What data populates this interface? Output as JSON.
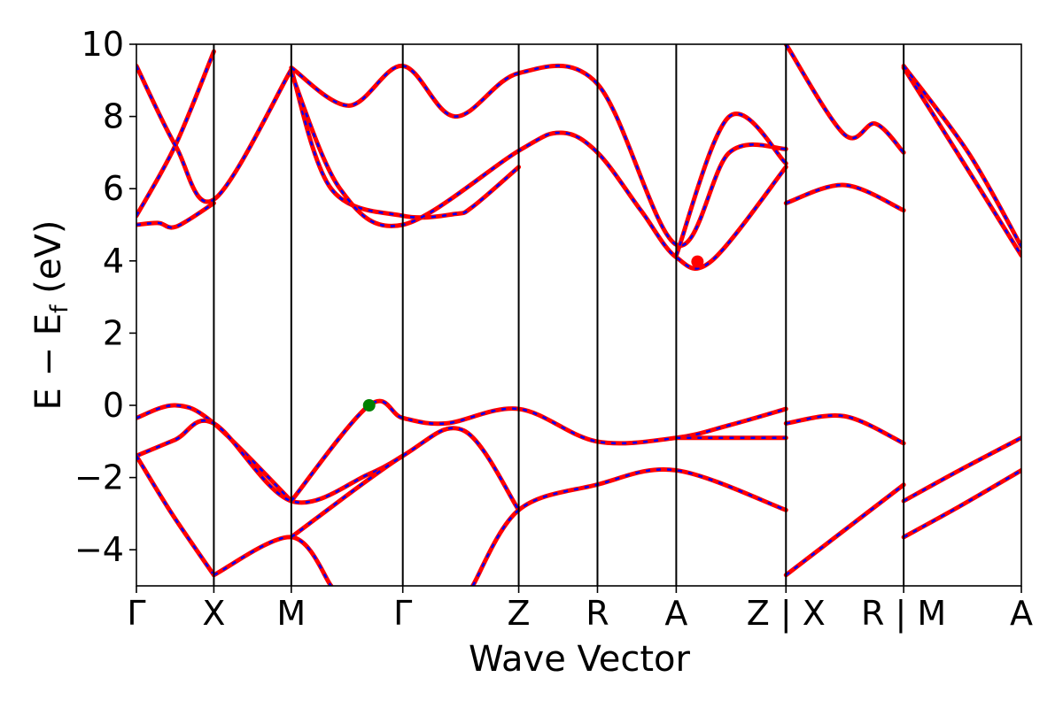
{
  "chart_data": {
    "type": "line",
    "title": "",
    "xlabel": "Wave Vector",
    "ylabel": "E − E",
    "ylabel_sub": "f",
    "ylabel_unit": " (eV)",
    "ylim": [
      -5,
      10
    ],
    "yticks": [
      -4,
      -2,
      0,
      2,
      4,
      6,
      8,
      10
    ],
    "ytick_labels": [
      "−4",
      "−2",
      "0",
      "2",
      "4",
      "6",
      "8",
      "10"
    ],
    "xlim": [
      0,
      1
    ],
    "k_ticks": [
      {
        "label": "Γ",
        "x": 0.0
      },
      {
        "label": "X",
        "x": 0.0875
      },
      {
        "label": "M",
        "x": 0.175
      },
      {
        "label": "Γ",
        "x": 0.301
      },
      {
        "label": "Z",
        "x": 0.432
      },
      {
        "label": "R",
        "x": 0.521
      },
      {
        "label": "A",
        "x": 0.61
      },
      {
        "label": "Z | X",
        "x": 0.734
      },
      {
        "label": "R | M",
        "x": 0.867
      },
      {
        "label": "A",
        "x": 1.0
      }
    ],
    "colors": {
      "band_solid": "#ff0000",
      "band_dashed": "#0000ff",
      "vbm": "#008000",
      "cbm": "#ff0000"
    },
    "markers": [
      {
        "name": "vbm",
        "x": 0.263,
        "y": 0.0
      },
      {
        "name": "cbm",
        "x": 0.634,
        "y": 3.98
      }
    ],
    "series": [
      {
        "x": [
          0.0,
          0.044,
          0.0875,
          0.175
        ],
        "y": [
          -0.35,
          0.0,
          -0.5,
          -2.65
        ]
      },
      {
        "x": [
          0.0,
          0.044,
          0.0875,
          0.175,
          0.263,
          0.301
        ],
        "y": [
          -1.4,
          -0.95,
          -0.5,
          -2.65,
          -1.9,
          -1.4
        ]
      },
      {
        "x": [
          0.0,
          0.04,
          0.0875
        ],
        "y": [
          -1.4,
          -3.0,
          -4.7
        ]
      },
      {
        "x": [
          0.0875,
          0.175,
          0.22
        ],
        "y": [
          -4.7,
          -3.65,
          -5.0
        ]
      },
      {
        "x": [
          0.175,
          0.263,
          0.301,
          0.35,
          0.432,
          0.52,
          0.61,
          0.67,
          0.734
        ],
        "y": [
          -2.65,
          0.0,
          -0.35,
          -0.5,
          -0.1,
          -1.0,
          -0.9,
          -0.55,
          -0.1
        ]
      },
      {
        "x": [
          0.175,
          0.301,
          0.37,
          0.432
        ],
        "y": [
          -3.65,
          -1.4,
          -0.7,
          -2.9
        ]
      },
      {
        "x": [
          0.38,
          0.432,
          0.52,
          0.61,
          0.734
        ],
        "y": [
          -5.0,
          -2.9,
          -2.2,
          -1.8,
          -2.9
        ]
      },
      {
        "x": [
          0.61,
          0.734
        ],
        "y": [
          -0.9,
          -0.9
        ]
      },
      {
        "x": [
          0.0,
          0.044,
          0.0875
        ],
        "y": [
          5.25,
          7.2,
          9.8
        ]
      },
      {
        "x": [
          0.0,
          0.025,
          0.045,
          0.0875
        ],
        "y": [
          5.0,
          5.05,
          4.95,
          5.6
        ]
      },
      {
        "x": [
          0.0,
          0.044,
          0.0875,
          0.175
        ],
        "y": [
          9.4,
          7.2,
          5.7,
          9.3
        ]
      },
      {
        "x": [
          0.175,
          0.22,
          0.301,
          0.36,
          0.38,
          0.432
        ],
        "y": [
          9.3,
          6.0,
          5.25,
          5.3,
          5.5,
          6.6
        ]
      },
      {
        "x": [
          0.175,
          0.23,
          0.301,
          0.432,
          0.48,
          0.521,
          0.57,
          0.61,
          0.65,
          0.734
        ],
        "y": [
          9.2,
          6.0,
          5.0,
          7.05,
          7.55,
          7.0,
          5.4,
          4.1,
          4.0,
          6.6
        ]
      },
      {
        "x": [
          0.175,
          0.24,
          0.301,
          0.36,
          0.432,
          0.521,
          0.61,
          0.67,
          0.734
        ],
        "y": [
          9.35,
          8.3,
          9.4,
          8.0,
          9.2,
          8.9,
          4.45,
          7.0,
          7.1
        ]
      },
      {
        "x": [
          0.61,
          0.67,
          0.734
        ],
        "y": [
          4.15,
          8.0,
          6.7
        ]
      },
      {
        "x": [
          0.734,
          0.8,
          0.867
        ],
        "y": [
          -0.5,
          -0.3,
          -1.05
        ]
      },
      {
        "x": [
          0.734,
          0.867
        ],
        "y": [
          -4.7,
          -2.2
        ]
      },
      {
        "x": [
          0.734,
          0.8,
          0.867
        ],
        "y": [
          5.6,
          6.1,
          5.4
        ]
      },
      {
        "x": [
          0.734,
          0.8,
          0.835,
          0.867
        ],
        "y": [
          10.0,
          7.5,
          7.8,
          7.0
        ]
      },
      {
        "x": [
          0.867,
          0.93,
          1.0
        ],
        "y": [
          -2.65,
          -1.8,
          -0.9
        ]
      },
      {
        "x": [
          0.867,
          0.93,
          1.0
        ],
        "y": [
          -3.65,
          -2.8,
          -1.8
        ]
      },
      {
        "x": [
          0.867,
          0.93,
          1.0
        ],
        "y": [
          9.35,
          6.9,
          4.15
        ]
      },
      {
        "x": [
          0.867,
          0.94,
          1.0
        ],
        "y": [
          9.4,
          7.0,
          4.4
        ]
      }
    ]
  }
}
